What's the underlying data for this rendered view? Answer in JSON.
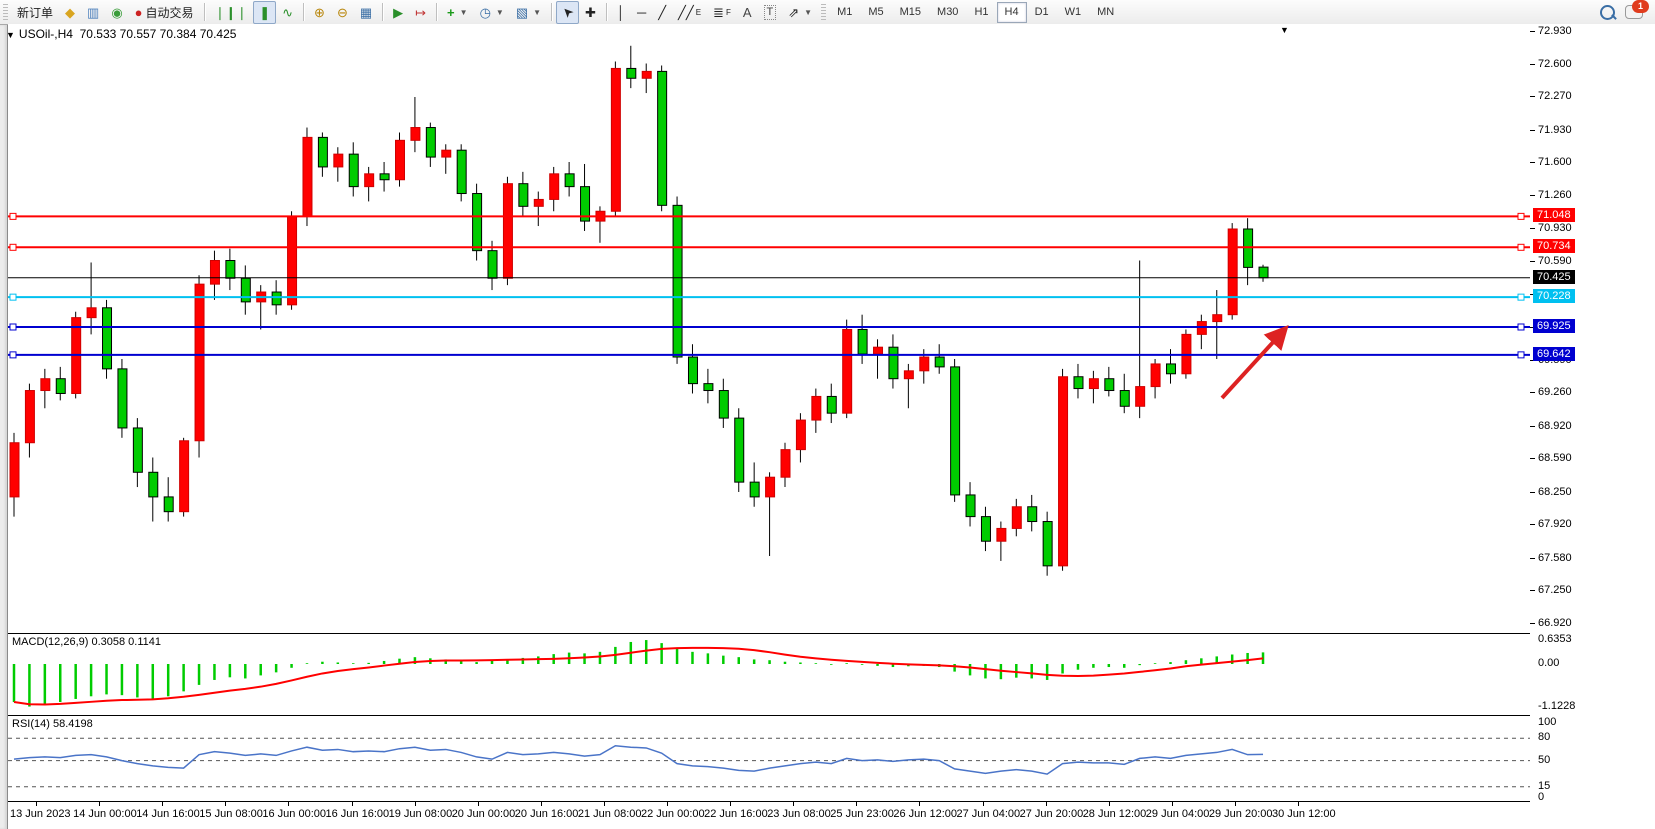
{
  "toolbar": {
    "new_order_label": "新订单",
    "autotrading_label": "自动交易",
    "groups": [
      {
        "items": [
          {
            "name": "metaeditor-icon",
            "glyph": "◆",
            "color": "#d9a520"
          },
          {
            "name": "terminal-icon",
            "glyph": "▥",
            "color": "#4a7ebb"
          },
          {
            "name": "signals-icon",
            "glyph": "◉",
            "color": "#3a9d3a"
          }
        ]
      },
      {
        "items": [
          {
            "name": "bar-chart-icon",
            "glyph": "❘❙❘",
            "color": "#2a8f2a"
          },
          {
            "name": "candlestick-icon",
            "glyph": "❚",
            "color": "#2a8f2a",
            "active": true
          },
          {
            "name": "line-chart-icon",
            "glyph": "∿",
            "color": "#2a8f2a"
          }
        ]
      },
      {
        "items": [
          {
            "name": "zoom-in-icon",
            "glyph": "⊕",
            "color": "#b8860b"
          },
          {
            "name": "zoom-out-icon",
            "glyph": "⊖",
            "color": "#b8860b"
          },
          {
            "name": "tile-windows-icon",
            "glyph": "▦",
            "color": "#3a6ea5"
          }
        ]
      },
      {
        "items": [
          {
            "name": "auto-scroll-icon",
            "glyph": "▶",
            "color": "#2a8f2a"
          },
          {
            "name": "chart-shift-icon",
            "glyph": "↦",
            "color": "#c03333"
          }
        ]
      },
      {
        "items": [
          {
            "name": "add-indicator-icon",
            "glyph": "+",
            "color": "#1a9a1a",
            "dropdown": true
          },
          {
            "name": "period-clock-icon",
            "glyph": "◷",
            "color": "#3a6ea5",
            "dropdown": true
          },
          {
            "name": "template-chart-icon",
            "glyph": "▧",
            "color": "#3a6ea5",
            "dropdown": true
          }
        ]
      },
      {
        "items": [
          {
            "name": "cursor-icon",
            "glyph": "➤",
            "color": "#222",
            "rotate": -135,
            "active": true
          },
          {
            "name": "crosshair-icon",
            "glyph": "✚",
            "color": "#222"
          }
        ]
      },
      {
        "items": [
          {
            "name": "vertical-line-icon",
            "glyph": "│",
            "color": "#222"
          },
          {
            "name": "horizontal-line-icon",
            "glyph": "─",
            "color": "#222"
          },
          {
            "name": "trend-line-icon",
            "glyph": "╱",
            "color": "#222"
          },
          {
            "name": "equidistant-channel-icon",
            "glyph": "╱╱",
            "sub": "E",
            "color": "#222"
          },
          {
            "name": "fibonacci-icon",
            "glyph": "≣",
            "sub": "F",
            "color": "#222"
          },
          {
            "name": "text-icon",
            "glyph": "A",
            "color": "#444"
          },
          {
            "name": "text-label-icon",
            "glyph": "T",
            "color": "#444",
            "boxed": true
          },
          {
            "name": "arrows-icon",
            "glyph": "⇗",
            "color": "#222",
            "dropdown": true
          }
        ]
      }
    ],
    "timeframes": [
      "M1",
      "M5",
      "M15",
      "M30",
      "H1",
      "H4",
      "D1",
      "W1",
      "MN"
    ],
    "active_timeframe": "H4",
    "notification_badge": "1"
  },
  "chart_header": {
    "collapse_marker": "▼",
    "title": "USOil-,H4",
    "ohlc_text": "70.533 70.557 70.384 70.425"
  },
  "scroll_end_marker": "▼",
  "chart_data": {
    "type": "candlestick",
    "symbol": "USOil-",
    "timeframe": "H4",
    "up_color": "#ff0000",
    "down_color": "#00cc00",
    "current_ohlc": {
      "open": "70.533",
      "high": "70.557",
      "low": "70.384",
      "close": "70.425"
    },
    "price_axis_ticks": [
      "72.930",
      "72.600",
      "72.270",
      "71.930",
      "71.600",
      "71.260",
      "70.930",
      "70.590",
      "70.260",
      "69.930",
      "69.590",
      "69.260",
      "68.920",
      "68.590",
      "68.250",
      "67.920",
      "67.580",
      "67.250",
      "66.920"
    ],
    "horizontal_lines": [
      {
        "value": "71.048",
        "price": 71.048,
        "color": "#ff0000",
        "text": "#ffffff",
        "role": "resistance"
      },
      {
        "value": "70.734",
        "price": 70.734,
        "color": "#ff0000",
        "text": "#ffffff",
        "role": "resistance"
      },
      {
        "value": "70.425",
        "price": 70.425,
        "color": "#000000",
        "text": "#ffffff",
        "role": "current-price"
      },
      {
        "value": "70.228",
        "price": 70.228,
        "color": "#00c0f0",
        "text": "#ffffff",
        "role": "level"
      },
      {
        "value": "69.925",
        "price": 69.925,
        "color": "#0000d0",
        "text": "#ffffff",
        "role": "support"
      },
      {
        "value": "69.642",
        "price": 69.642,
        "color": "#0000d0",
        "text": "#ffffff",
        "role": "support"
      }
    ],
    "time_labels": [
      "13 Jun 2023",
      "14 Jun 00:00",
      "14 Jun 16:00",
      "15 Jun 08:00",
      "16 Jun 00:00",
      "16 Jun 16:00",
      "19 Jun 08:00",
      "20 Jun 00:00",
      "20 Jun 16:00",
      "21 Jun 08:00",
      "22 Jun 00:00",
      "22 Jun 16:00",
      "23 Jun 08:00",
      "25 Jun 23:00",
      "26 Jun 12:00",
      "27 Jun 04:00",
      "27 Jun 20:00",
      "28 Jun 12:00",
      "29 Jun 04:00",
      "29 Jun 20:00",
      "30 Jun 12:00"
    ],
    "candles": [
      [
        68.2,
        68.85,
        68.0,
        68.75
      ],
      [
        68.75,
        69.35,
        68.6,
        69.28
      ],
      [
        69.28,
        69.5,
        69.1,
        69.4
      ],
      [
        69.4,
        69.52,
        69.18,
        69.25
      ],
      [
        69.25,
        70.08,
        69.2,
        70.02
      ],
      [
        70.02,
        70.58,
        69.85,
        70.12
      ],
      [
        70.12,
        70.2,
        69.4,
        69.5
      ],
      [
        69.5,
        69.6,
        68.8,
        68.9
      ],
      [
        68.9,
        69.0,
        68.3,
        68.45
      ],
      [
        68.45,
        68.6,
        67.95,
        68.2
      ],
      [
        68.2,
        68.4,
        67.95,
        68.05
      ],
      [
        68.05,
        68.8,
        68.0,
        68.77
      ],
      [
        68.77,
        70.45,
        68.6,
        70.36
      ],
      [
        70.36,
        70.7,
        70.2,
        70.6
      ],
      [
        70.6,
        70.72,
        70.3,
        70.42
      ],
      [
        70.42,
        70.55,
        70.05,
        70.18
      ],
      [
        70.18,
        70.35,
        69.9,
        70.28
      ],
      [
        70.28,
        70.4,
        70.05,
        70.15
      ],
      [
        70.15,
        71.1,
        70.1,
        71.05
      ],
      [
        71.05,
        71.95,
        70.95,
        71.85
      ],
      [
        71.85,
        71.9,
        71.45,
        71.55
      ],
      [
        71.55,
        71.75,
        71.4,
        71.68
      ],
      [
        71.68,
        71.8,
        71.25,
        71.35
      ],
      [
        71.35,
        71.55,
        71.2,
        71.48
      ],
      [
        71.48,
        71.6,
        71.3,
        71.42
      ],
      [
        71.42,
        71.9,
        71.35,
        71.82
      ],
      [
        71.82,
        72.26,
        71.7,
        71.95
      ],
      [
        71.95,
        72.0,
        71.55,
        71.65
      ],
      [
        71.65,
        71.78,
        71.48,
        71.72
      ],
      [
        71.72,
        71.78,
        71.2,
        71.28
      ],
      [
        71.28,
        71.38,
        70.6,
        70.7
      ],
      [
        70.7,
        70.8,
        70.3,
        70.42
      ],
      [
        70.42,
        71.45,
        70.35,
        71.38
      ],
      [
        71.38,
        71.5,
        71.05,
        71.15
      ],
      [
        71.15,
        71.3,
        70.95,
        71.22
      ],
      [
        71.22,
        71.55,
        71.1,
        71.48
      ],
      [
        71.48,
        71.6,
        71.25,
        71.35
      ],
      [
        71.35,
        71.58,
        70.9,
        71.0
      ],
      [
        71.0,
        71.15,
        70.78,
        71.1
      ],
      [
        71.1,
        72.62,
        71.05,
        72.55
      ],
      [
        72.55,
        72.78,
        72.35,
        72.45
      ],
      [
        72.45,
        72.6,
        72.3,
        72.52
      ],
      [
        72.52,
        72.58,
        71.1,
        71.16
      ],
      [
        71.16,
        71.25,
        69.55,
        69.62
      ],
      [
        69.62,
        69.75,
        69.25,
        69.35
      ],
      [
        69.35,
        69.5,
        69.15,
        69.28
      ],
      [
        69.28,
        69.4,
        68.9,
        69.0
      ],
      [
        69.0,
        69.1,
        68.25,
        68.35
      ],
      [
        68.35,
        68.55,
        68.1,
        68.2
      ],
      [
        68.2,
        68.45,
        67.6,
        68.4
      ],
      [
        68.4,
        68.75,
        68.3,
        68.68
      ],
      [
        68.68,
        69.05,
        68.55,
        68.98
      ],
      [
        68.98,
        69.3,
        68.85,
        69.22
      ],
      [
        69.22,
        69.35,
        68.95,
        69.05
      ],
      [
        69.05,
        70.0,
        69.0,
        69.9
      ],
      [
        69.9,
        70.05,
        69.55,
        69.65
      ],
      [
        69.65,
        69.8,
        69.4,
        69.72
      ],
      [
        69.72,
        69.85,
        69.3,
        69.4
      ],
      [
        69.4,
        69.55,
        69.1,
        69.48
      ],
      [
        69.48,
        69.7,
        69.35,
        69.62
      ],
      [
        69.62,
        69.75,
        69.45,
        69.52
      ],
      [
        69.52,
        69.6,
        68.15,
        68.22
      ],
      [
        68.22,
        68.35,
        67.9,
        68.0
      ],
      [
        68.0,
        68.1,
        67.65,
        67.75
      ],
      [
        67.75,
        67.95,
        67.55,
        67.88
      ],
      [
        67.88,
        68.18,
        67.8,
        68.1
      ],
      [
        68.1,
        68.22,
        67.85,
        67.95
      ],
      [
        67.95,
        68.05,
        67.4,
        67.5
      ],
      [
        67.5,
        69.5,
        67.45,
        69.42
      ],
      [
        69.42,
        69.55,
        69.2,
        69.3
      ],
      [
        69.3,
        69.48,
        69.15,
        69.4
      ],
      [
        69.4,
        69.52,
        69.22,
        69.28
      ],
      [
        69.28,
        69.45,
        69.05,
        69.12
      ],
      [
        69.12,
        70.6,
        69.0,
        69.32
      ],
      [
        69.32,
        69.6,
        69.2,
        69.55
      ],
      [
        69.55,
        69.7,
        69.35,
        69.45
      ],
      [
        69.45,
        69.9,
        69.4,
        69.85
      ],
      [
        69.85,
        70.05,
        69.7,
        69.98
      ],
      [
        69.98,
        70.3,
        69.6,
        70.05
      ],
      [
        70.05,
        70.98,
        70.0,
        70.92
      ],
      [
        70.92,
        71.03,
        70.35,
        70.53
      ],
      [
        70.533,
        70.557,
        70.384,
        70.425
      ]
    ],
    "indicators": {
      "macd": {
        "label": "MACD(12,26,9)",
        "values_text": "0.3058 0.1141",
        "main_value": 0.3058,
        "signal_value": 0.1141,
        "axis_labels": [
          "0.6353",
          "0.00",
          "-1.1228"
        ],
        "axis_values": [
          0.6353,
          0,
          -1.1228
        ],
        "hist_color": "#00cc00",
        "signal_color": "#ff0000",
        "histogram": [
          -1.0,
          -1.12,
          -1.08,
          -1.0,
          -0.92,
          -0.85,
          -0.8,
          -0.82,
          -0.88,
          -0.92,
          -0.85,
          -0.72,
          -0.55,
          -0.42,
          -0.35,
          -0.38,
          -0.3,
          -0.22,
          -0.1,
          0.02,
          0.06,
          0.04,
          0.02,
          0.03,
          0.08,
          0.14,
          0.18,
          0.15,
          0.12,
          0.08,
          0.05,
          0.08,
          0.12,
          0.16,
          0.2,
          0.26,
          0.3,
          0.28,
          0.32,
          0.45,
          0.58,
          0.63,
          0.55,
          0.4,
          0.32,
          0.28,
          0.22,
          0.18,
          0.12,
          0.1,
          0.06,
          0.04,
          0.02,
          -0.02,
          0.02,
          -0.02,
          -0.05,
          -0.08,
          -0.06,
          -0.05,
          -0.08,
          -0.2,
          -0.3,
          -0.38,
          -0.4,
          -0.36,
          -0.38,
          -0.42,
          -0.25,
          -0.15,
          -0.1,
          -0.08,
          -0.1,
          -0.03,
          0.02,
          0.05,
          0.1,
          0.15,
          0.2,
          0.25,
          0.29,
          0.3058
        ]
      },
      "rsi": {
        "label": "RSI(14)",
        "value_text": "58.4198",
        "line_color": "#4a74c8",
        "levels": [
          "100",
          "80",
          "50",
          "15",
          "0"
        ],
        "dashed_levels": [
          80,
          50,
          15
        ],
        "series": [
          52,
          54,
          55,
          54,
          57,
          58,
          55,
          50,
          46,
          43,
          41,
          40,
          58,
          62,
          60,
          57,
          59,
          57,
          63,
          68,
          64,
          65,
          62,
          63,
          62,
          66,
          68,
          64,
          65,
          61,
          55,
          52,
          61,
          58,
          59,
          61,
          59,
          56,
          58,
          70,
          68,
          67,
          60,
          46,
          43,
          42,
          40,
          37,
          36,
          40,
          43,
          46,
          48,
          46,
          53,
          50,
          51,
          49,
          51,
          52,
          50,
          39,
          36,
          33,
          36,
          38,
          36,
          32,
          46,
          48,
          47,
          47,
          45,
          53,
          55,
          53,
          57,
          59,
          61,
          65,
          58,
          58.4
        ]
      }
    },
    "annotations": [
      {
        "type": "arrow",
        "color": "#dd2222",
        "from_price": 69.17,
        "to_price": 69.9,
        "note_shape": "up-right"
      }
    ]
  }
}
